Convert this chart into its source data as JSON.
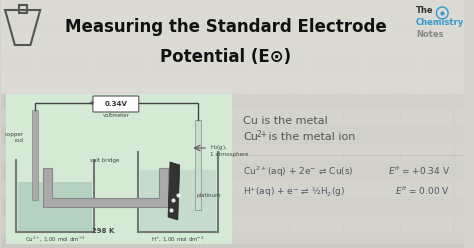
{
  "title_line1": "Measuring the Standard Electrode",
  "title_line2": "Potential (E⊙)",
  "bg_brick_color": "#d4d4cc",
  "header_bg": "#e2e2da",
  "diagram_bg": "#d4ead4",
  "title_color": "#111111",
  "text_color": "#555555",
  "diagram_text": "#555555",
  "brand_the": "#333333",
  "brand_chemistry": "#3399cc",
  "brand_notes": "#888888",
  "eq1_left": "Cu$^{2+}$(aq) + 2e$^{-}$ ⇌ Cu(s)",
  "eq1_right": "$E^{\\theta}$ = +0.34 V",
  "eq2_left": "H$^{+}$(aq) + e$^{-}$ ⇌ ½H$_2$(g)",
  "eq2_right": "$E^{\\theta}$ = 0.00 V",
  "label_cu": "Cu is the metal",
  "label_cu2_pre": "Cu",
  "label_cu2_sup": "2+",
  "label_cu2_post": " is the metal ion",
  "voltmeter_label": "0.34V",
  "voltmeter_sub": "voltmeter",
  "copper_rod_label": "copper\nrod",
  "salt_bridge_label": "salt bridge",
  "platinum_label": "platinum",
  "h2_label": "←  H$_2$(g),\n     1 atmosphere",
  "temp_label": "298 K",
  "cu_conc": "Cu$^{2+}$, 1.00 mol dm$^{-3}$",
  "h_conc": "H$^{+}$, 1.00 mol dm$^{-3}$",
  "wire_color": "#555555",
  "copper_color": "#aaaaaa",
  "solution_color": "#b8d8c8",
  "beaker_color": "#888888",
  "salt_bridge_color": "#999999"
}
